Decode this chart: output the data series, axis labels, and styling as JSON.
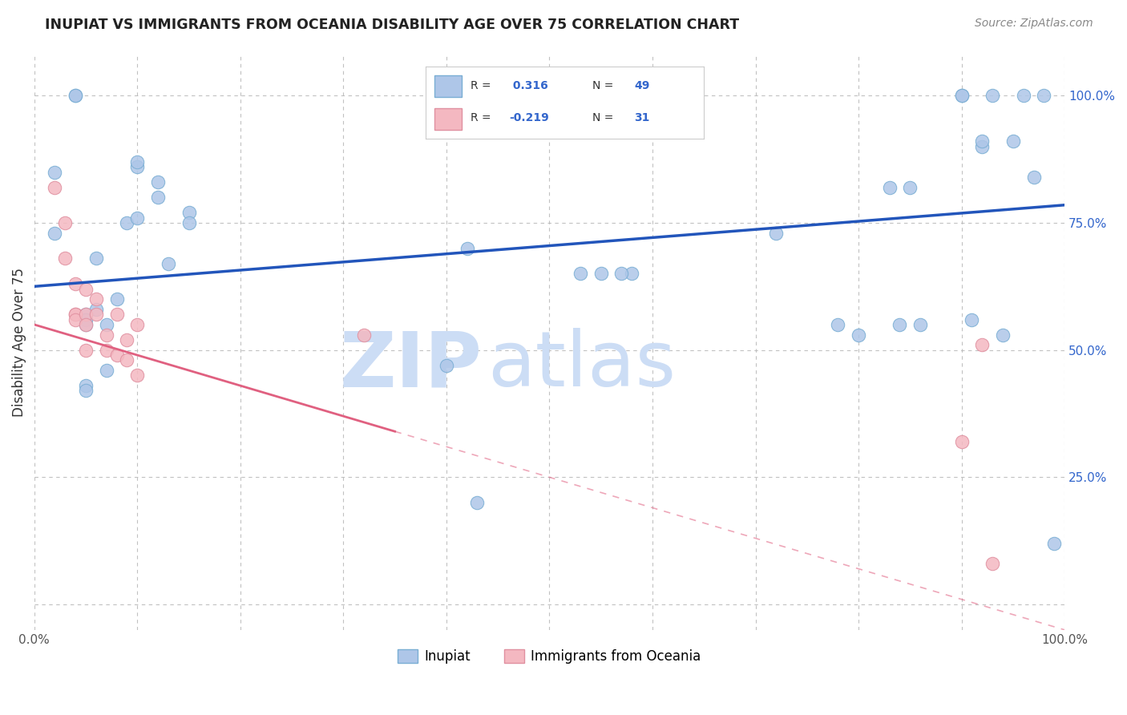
{
  "title": "INUPIAT VS IMMIGRANTS FROM OCEANIA DISABILITY AGE OVER 75 CORRELATION CHART",
  "source": "Source: ZipAtlas.com",
  "ylabel": "Disability Age Over 75",
  "xlim": [
    0,
    1
  ],
  "ylim": [
    -0.05,
    1.08
  ],
  "legend_label1": "Inupiat",
  "legend_label2": "Immigrants from Oceania",
  "R1": 0.316,
  "N1": 49,
  "R2": -0.219,
  "N2": 31,
  "color_inupiat": "#aec6e8",
  "color_oceania": "#f4b8c1",
  "color_inupiat_edge": "#7aaed4",
  "color_oceania_edge": "#e090a0",
  "color_line1": "#2255bb",
  "color_line2": "#e06080",
  "color_title": "#222222",
  "color_source": "#888888",
  "color_grid": "#bbbbbb",
  "color_watermark": "#ccddf5",
  "color_right_ticks": "#3366cc",
  "inupiat_x": [
    0.02,
    0.02,
    0.04,
    0.04,
    0.05,
    0.05,
    0.05,
    0.05,
    0.05,
    0.06,
    0.06,
    0.07,
    0.07,
    0.08,
    0.09,
    0.1,
    0.1,
    0.1,
    0.12,
    0.12,
    0.13,
    0.15,
    0.15,
    0.4,
    0.42,
    0.43,
    0.55,
    0.58,
    0.72,
    0.78,
    0.8,
    0.83,
    0.85,
    0.9,
    0.9,
    0.92,
    0.92,
    0.93,
    0.95,
    0.96,
    0.97,
    0.98,
    0.53,
    0.57,
    0.84,
    0.86,
    0.91,
    0.94,
    0.99
  ],
  "inupiat_y": [
    0.85,
    0.73,
    1.0,
    1.0,
    0.57,
    0.56,
    0.55,
    0.43,
    0.42,
    0.68,
    0.58,
    0.55,
    0.46,
    0.6,
    0.75,
    0.86,
    0.87,
    0.76,
    0.8,
    0.83,
    0.67,
    0.77,
    0.75,
    0.47,
    0.7,
    0.2,
    0.65,
    0.65,
    0.73,
    0.55,
    0.53,
    0.82,
    0.82,
    1.0,
    1.0,
    0.9,
    0.91,
    1.0,
    0.91,
    1.0,
    0.84,
    1.0,
    0.65,
    0.65,
    0.55,
    0.55,
    0.56,
    0.53,
    0.12
  ],
  "oceania_x": [
    0.02,
    0.03,
    0.03,
    0.04,
    0.04,
    0.04,
    0.04,
    0.05,
    0.05,
    0.05,
    0.05,
    0.06,
    0.06,
    0.07,
    0.07,
    0.08,
    0.08,
    0.09,
    0.09,
    0.1,
    0.1,
    0.32,
    0.9,
    0.92,
    0.93
  ],
  "oceania_y": [
    0.82,
    0.75,
    0.68,
    0.63,
    0.57,
    0.57,
    0.56,
    0.62,
    0.57,
    0.55,
    0.5,
    0.6,
    0.57,
    0.53,
    0.5,
    0.57,
    0.49,
    0.52,
    0.48,
    0.55,
    0.45,
    0.53,
    0.32,
    0.51,
    0.08
  ],
  "line1_x0": 0.0,
  "line1_y0": 0.625,
  "line1_x1": 1.0,
  "line1_y1": 0.785,
  "line2_x0": 0.0,
  "line2_y0": 0.55,
  "line2_x1": 1.0,
  "line2_y1": -0.05,
  "line2_solid_end": 0.35
}
